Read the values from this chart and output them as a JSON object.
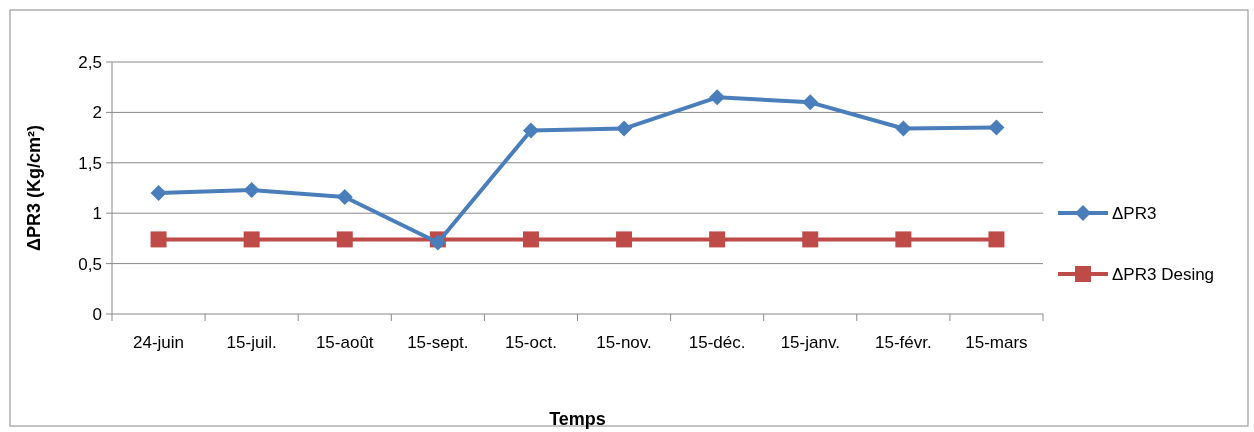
{
  "chart_data": {
    "type": "line",
    "xlabel": "Temps",
    "ylabel": "ΔPR3 (Kg/cm²)",
    "categories": [
      "24-juin",
      "15-juil.",
      "15-août",
      "15-sept.",
      "15-oct.",
      "15-nov.",
      "15-déc.",
      "15-janv.",
      "15-févr.",
      "15-mars"
    ],
    "series": [
      {
        "name": "ΔPR3",
        "color": "#4a7ebb",
        "marker": "diamond",
        "values": [
          1.2,
          1.23,
          1.16,
          0.71,
          1.82,
          1.84,
          2.15,
          2.1,
          1.84,
          1.85
        ]
      },
      {
        "name": "ΔPR3 Desing",
        "color": "#be4b48",
        "marker": "square",
        "values": [
          0.74,
          0.74,
          0.74,
          0.74,
          0.74,
          0.74,
          0.74,
          0.74,
          0.74,
          0.74
        ]
      }
    ],
    "ylim": [
      0,
      2.5
    ],
    "yticks": [
      {
        "value": 0,
        "label": "0"
      },
      {
        "value": 0.5,
        "label": "0,5"
      },
      {
        "value": 1,
        "label": "1"
      },
      {
        "value": 1.5,
        "label": "1,5"
      },
      {
        "value": 2,
        "label": "2"
      },
      {
        "value": 2.5,
        "label": "2,5"
      }
    ],
    "grid": "y",
    "legend": "right",
    "line_style": "solid"
  }
}
